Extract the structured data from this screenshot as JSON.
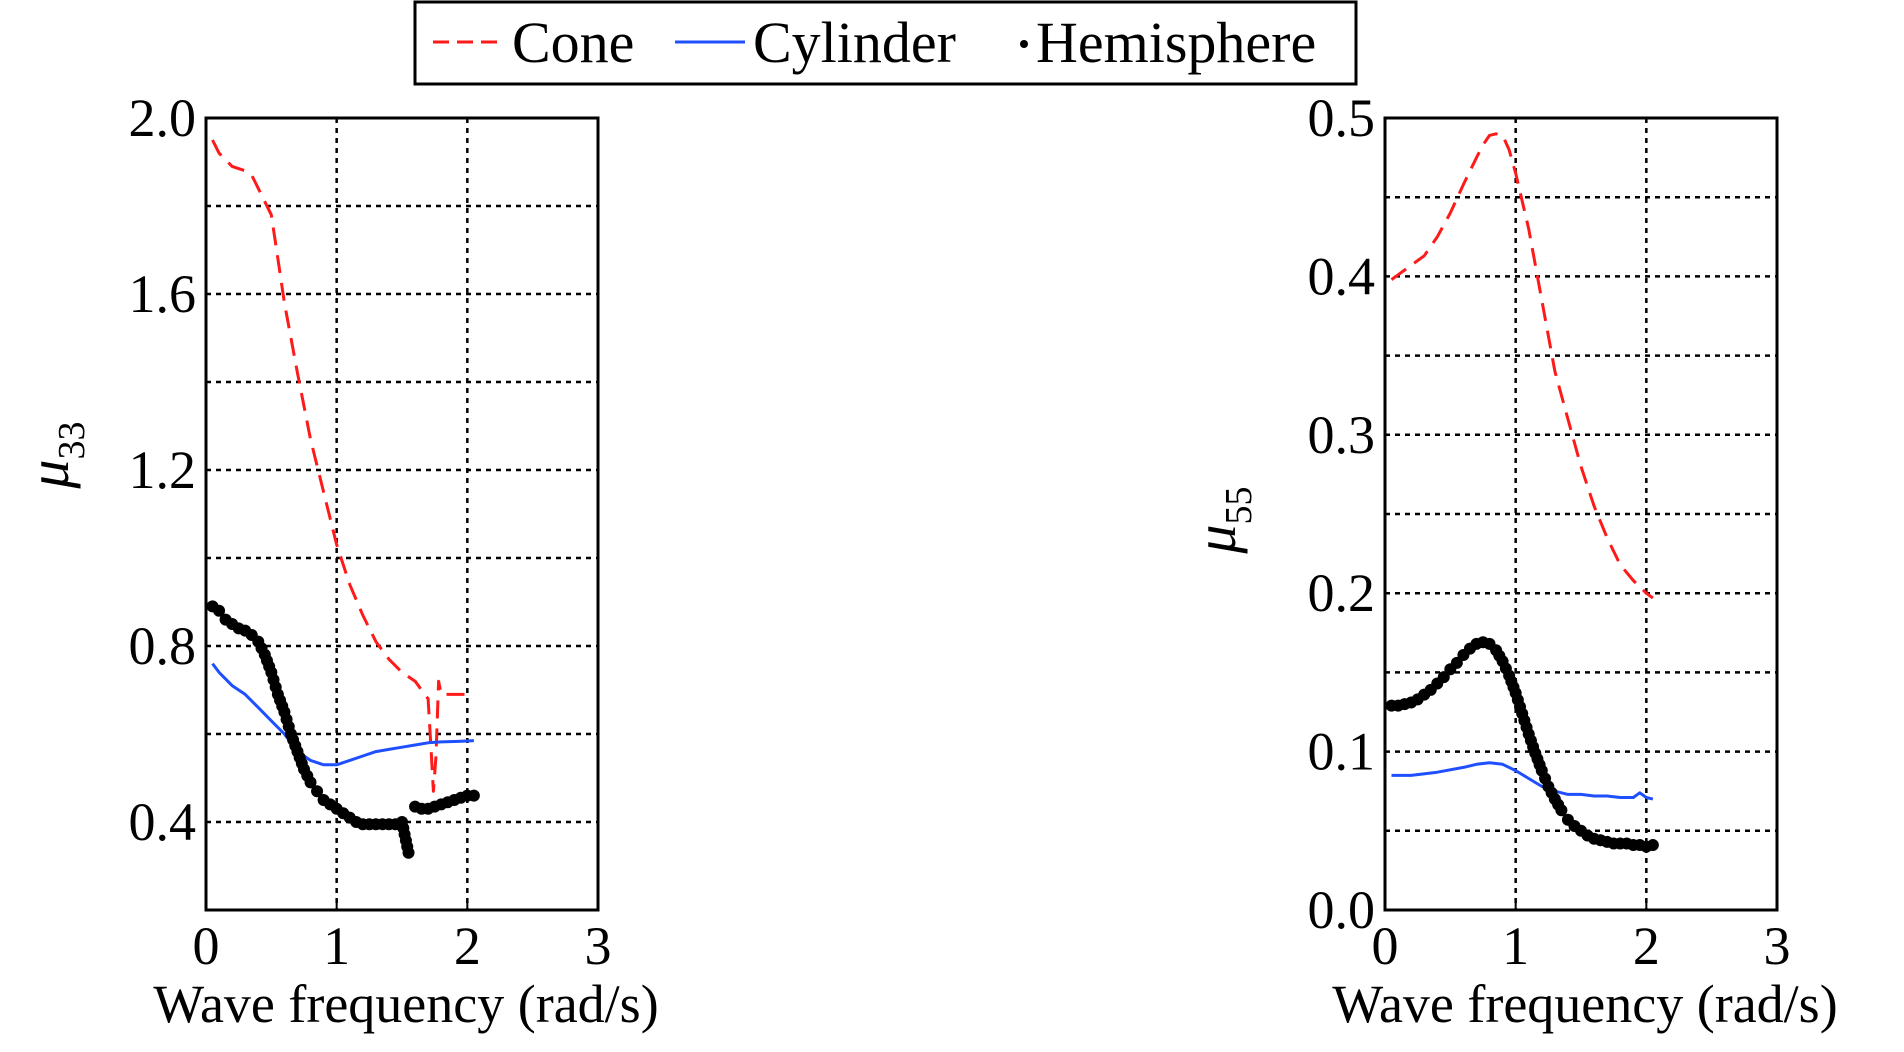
{
  "legend": {
    "entries": [
      {
        "label": "Cone",
        "color": "#ff1a1a",
        "style": "dashed"
      },
      {
        "label": "Cylinder",
        "color": "#1f4fff",
        "style": "solid"
      },
      {
        "label": "Hemisphere",
        "color": "#000000",
        "style": "dotted"
      }
    ]
  },
  "chart_data": [
    {
      "type": "line",
      "xlabel": "Wave frequency (rad/s)",
      "ylabel_symbol": "μ",
      "ylabel_subscript": "33",
      "xlim": [
        0,
        3
      ],
      "ylim": [
        0.2,
        2.0
      ],
      "xticks": [
        0,
        1,
        2,
        3
      ],
      "xtick_labels": [
        "0",
        "1",
        "2",
        "3"
      ],
      "yticks": [
        0.4,
        0.8,
        1.2,
        1.6,
        2.0
      ],
      "ytick_labels": [
        "0.4",
        "0.8",
        "1.2",
        "1.6",
        "2.0"
      ],
      "grid_x": [
        1,
        2
      ],
      "grid_y": [
        0.4,
        0.6,
        0.8,
        1.0,
        1.2,
        1.4,
        1.6,
        1.8
      ],
      "grid": true,
      "series": [
        {
          "name": "Cone",
          "x": [
            0.05,
            0.1,
            0.2,
            0.3,
            0.35,
            0.4,
            0.5,
            0.55,
            0.6,
            0.7,
            0.8,
            0.9,
            1.0,
            1.1,
            1.2,
            1.3,
            1.4,
            1.5,
            1.55,
            1.6,
            1.65,
            1.7,
            1.72,
            1.74,
            1.76,
            1.78,
            1.8,
            1.85,
            1.9,
            2.0,
            2.05
          ],
          "y": [
            1.95,
            1.92,
            1.89,
            1.88,
            1.87,
            1.84,
            1.78,
            1.68,
            1.58,
            1.42,
            1.27,
            1.15,
            1.03,
            0.94,
            0.87,
            0.81,
            0.77,
            0.74,
            0.73,
            0.72,
            0.7,
            0.68,
            0.58,
            0.47,
            0.55,
            0.72,
            0.69,
            0.69,
            0.69,
            0.69,
            0.69
          ]
        },
        {
          "name": "Cylinder",
          "x": [
            0.05,
            0.1,
            0.2,
            0.3,
            0.4,
            0.5,
            0.6,
            0.7,
            0.8,
            0.9,
            1.0,
            1.1,
            1.2,
            1.3,
            1.4,
            1.5,
            1.6,
            1.7,
            1.8,
            1.9,
            2.0,
            2.05
          ],
          "y": [
            0.76,
            0.74,
            0.71,
            0.69,
            0.66,
            0.63,
            0.6,
            0.56,
            0.54,
            0.53,
            0.53,
            0.54,
            0.55,
            0.56,
            0.565,
            0.57,
            0.575,
            0.58,
            0.582,
            0.583,
            0.584,
            0.585
          ]
        },
        {
          "name": "Hemisphere",
          "x": [
            0.05,
            0.1,
            0.15,
            0.2,
            0.25,
            0.3,
            0.35,
            0.4,
            0.45,
            0.5,
            0.55,
            0.6,
            0.65,
            0.7,
            0.75,
            0.8,
            0.85,
            0.9,
            0.95,
            1.0,
            1.05,
            1.1,
            1.15,
            1.2,
            1.25,
            1.3,
            1.35,
            1.4,
            1.45,
            1.5,
            1.55,
            1.6,
            1.65,
            1.7,
            1.75,
            1.8,
            1.85,
            1.9,
            1.95,
            2.0,
            2.05
          ],
          "y": [
            0.89,
            0.88,
            0.86,
            0.85,
            0.84,
            0.835,
            0.825,
            0.81,
            0.78,
            0.74,
            0.69,
            0.65,
            0.6,
            0.56,
            0.52,
            0.49,
            0.47,
            0.45,
            0.44,
            0.43,
            0.42,
            0.41,
            0.4,
            0.395,
            0.395,
            0.395,
            0.395,
            0.395,
            0.395,
            0.4,
            0.33,
            0.435,
            0.43,
            0.43,
            0.435,
            0.44,
            0.445,
            0.45,
            0.455,
            0.46,
            0.46
          ]
        }
      ]
    },
    {
      "type": "line",
      "xlabel": "Wave frequency (rad/s)",
      "ylabel_symbol": "μ",
      "ylabel_subscript": "55",
      "xlim": [
        0,
        3
      ],
      "ylim": [
        0.0,
        0.5
      ],
      "xticks": [
        0,
        1,
        2,
        3
      ],
      "xtick_labels": [
        "0",
        "1",
        "2",
        "3"
      ],
      "yticks": [
        0.0,
        0.1,
        0.2,
        0.3,
        0.4,
        0.5
      ],
      "ytick_labels": [
        "0.0",
        "0.1",
        "0.2",
        "0.3",
        "0.4",
        "0.5"
      ],
      "grid_x": [
        1,
        2
      ],
      "grid_y": [
        0.05,
        0.1,
        0.15,
        0.2,
        0.25,
        0.3,
        0.35,
        0.4,
        0.45
      ],
      "grid": true,
      "series": [
        {
          "name": "Cone",
          "x": [
            0.05,
            0.1,
            0.2,
            0.3,
            0.4,
            0.5,
            0.6,
            0.7,
            0.75,
            0.8,
            0.85,
            0.9,
            0.95,
            1.0,
            1.1,
            1.2,
            1.3,
            1.4,
            1.5,
            1.6,
            1.7,
            1.8,
            1.9,
            2.0,
            2.05
          ],
          "y": [
            0.398,
            0.401,
            0.407,
            0.413,
            0.425,
            0.44,
            0.458,
            0.475,
            0.483,
            0.489,
            0.49,
            0.489,
            0.48,
            0.465,
            0.43,
            0.385,
            0.34,
            0.31,
            0.28,
            0.255,
            0.235,
            0.218,
            0.208,
            0.2,
            0.197
          ]
        },
        {
          "name": "Cylinder",
          "x": [
            0.05,
            0.2,
            0.4,
            0.6,
            0.7,
            0.8,
            0.9,
            1.0,
            1.1,
            1.2,
            1.3,
            1.4,
            1.5,
            1.6,
            1.7,
            1.8,
            1.9,
            1.95,
            2.0,
            2.05
          ],
          "y": [
            0.085,
            0.085,
            0.087,
            0.09,
            0.092,
            0.093,
            0.092,
            0.088,
            0.083,
            0.078,
            0.075,
            0.073,
            0.073,
            0.072,
            0.072,
            0.071,
            0.071,
            0.074,
            0.071,
            0.07
          ]
        },
        {
          "name": "Hemisphere",
          "x": [
            0.05,
            0.1,
            0.15,
            0.2,
            0.25,
            0.3,
            0.35,
            0.4,
            0.45,
            0.5,
            0.55,
            0.6,
            0.65,
            0.7,
            0.75,
            0.8,
            0.85,
            0.9,
            0.95,
            1.0,
            1.05,
            1.1,
            1.15,
            1.2,
            1.25,
            1.3,
            1.35,
            1.4,
            1.45,
            1.5,
            1.55,
            1.6,
            1.65,
            1.7,
            1.75,
            1.8,
            1.85,
            1.9,
            1.95,
            2.0,
            2.05
          ],
          "y": [
            0.129,
            0.129,
            0.13,
            0.131,
            0.133,
            0.136,
            0.139,
            0.143,
            0.147,
            0.152,
            0.156,
            0.161,
            0.165,
            0.168,
            0.169,
            0.168,
            0.164,
            0.157,
            0.148,
            0.137,
            0.124,
            0.111,
            0.099,
            0.088,
            0.078,
            0.07,
            0.063,
            0.057,
            0.053,
            0.05,
            0.047,
            0.045,
            0.044,
            0.043,
            0.042,
            0.042,
            0.042,
            0.041,
            0.041,
            0.04,
            0.041
          ]
        }
      ]
    }
  ]
}
